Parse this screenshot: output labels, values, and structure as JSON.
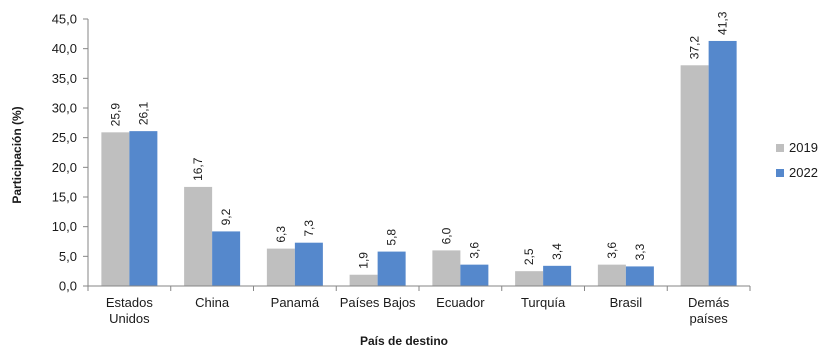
{
  "chart_data": {
    "type": "bar",
    "categories": [
      "Estados Unidos",
      "China",
      "Panamá",
      "Países Bajos",
      "Ecuador",
      "Turquía",
      "Brasil",
      "Demás países"
    ],
    "category_lines": [
      [
        "Estados",
        "Unidos"
      ],
      [
        "China"
      ],
      [
        "Panamá"
      ],
      [
        "Países Bajos"
      ],
      [
        "Ecuador"
      ],
      [
        "Turquía"
      ],
      [
        "Brasil"
      ],
      [
        "Demás",
        "países"
      ]
    ],
    "series": [
      {
        "name": "2019",
        "color": "#bfbfbf",
        "values": [
          25.9,
          16.7,
          6.3,
          1.9,
          6.0,
          2.5,
          3.6,
          37.2
        ],
        "labels": [
          "25,9",
          "16,7",
          "6,3",
          "1,9",
          "6,0",
          "2,5",
          "3,6",
          "37,2"
        ]
      },
      {
        "name": "2022",
        "color": "#5588cc",
        "values": [
          26.1,
          9.2,
          7.3,
          5.8,
          3.6,
          3.4,
          3.3,
          41.3
        ],
        "labels": [
          "26,1",
          "9,2",
          "7,3",
          "5,8",
          "3,6",
          "3,4",
          "3,3",
          "41,3"
        ]
      }
    ],
    "xlabel": "País de destino",
    "ylabel": "Participación (%)",
    "ylim": [
      0,
      45
    ],
    "yticks": [
      "0,0",
      "5,0",
      "10,0",
      "15,0",
      "20,0",
      "25,0",
      "30,0",
      "35,0",
      "40,0",
      "45,0"
    ],
    "grid": false,
    "legend_position": "right"
  }
}
